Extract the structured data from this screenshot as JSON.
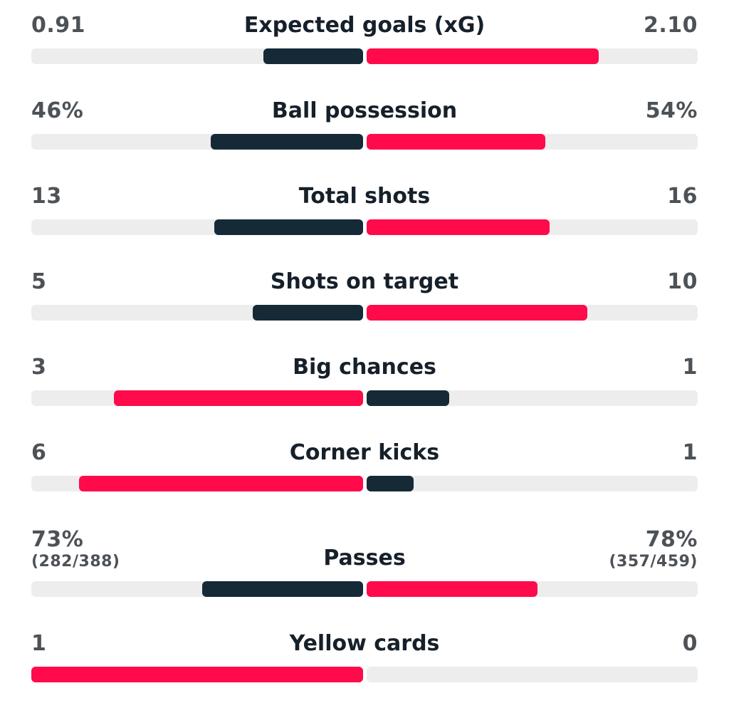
{
  "colors": {
    "dark": "#152a36",
    "red": "#ff0a4a",
    "track": "#ededed"
  },
  "stats": [
    {
      "label": "Expected goals (xG)",
      "home": "0.91",
      "away": "2.10",
      "home_fraction": 0.3,
      "away_fraction": 0.7,
      "home_color": "dark",
      "away_color": "red"
    },
    {
      "label": "Ball possession",
      "home": "46%",
      "away": "54%",
      "home_fraction": 0.46,
      "away_fraction": 0.54,
      "home_color": "dark",
      "away_color": "red"
    },
    {
      "label": "Total shots",
      "home": "13",
      "away": "16",
      "home_fraction": 0.448,
      "away_fraction": 0.552,
      "home_color": "dark",
      "away_color": "red"
    },
    {
      "label": "Shots on target",
      "home": "5",
      "away": "10",
      "home_fraction": 0.333,
      "away_fraction": 0.667,
      "home_color": "dark",
      "away_color": "red"
    },
    {
      "label": "Big chances",
      "home": "3",
      "away": "1",
      "home_fraction": 0.75,
      "away_fraction": 0.25,
      "home_color": "red",
      "away_color": "dark"
    },
    {
      "label": "Corner kicks",
      "home": "6",
      "away": "1",
      "home_fraction": 0.857,
      "away_fraction": 0.143,
      "home_color": "red",
      "away_color": "dark"
    },
    {
      "label": "Passes",
      "home": "73%",
      "home_detail": "(282/388)",
      "away": "78%",
      "away_detail": "(357/459)",
      "home_fraction": 0.484,
      "away_fraction": 0.516,
      "home_color": "dark",
      "away_color": "red"
    },
    {
      "label": "Yellow cards",
      "home": "1",
      "away": "0",
      "home_fraction": 1.0,
      "away_fraction": 0.0,
      "home_color": "red",
      "away_color": "dark"
    }
  ]
}
